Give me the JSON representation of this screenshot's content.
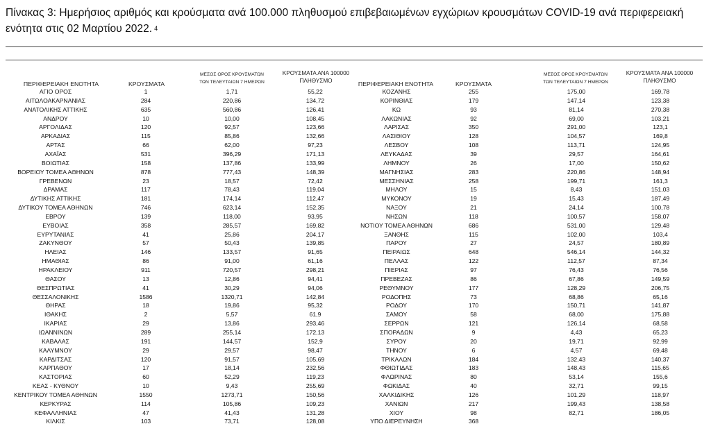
{
  "title": {
    "text": "Πίνακας 3: Ημερήσιος αριθμός και κρούσματα ανά 100.000 πληθυσμού επιβεβαιωμένων εγχώριων κρουσμάτων COVID-19 ανά περιφερειακή ενότητα στις 02 Μαρτίου 2022.",
    "footnote": "4"
  },
  "headers": {
    "region": "ΠΕΡΙΦΕΡΕΙΑΚΗ ΕΝΟΤΗΤΑ",
    "cases": "ΚΡΟΥΣΜΑΤΑ",
    "avg_line1": "ΜΕΣΟΣ ΟΡΟΣ ΚΡΟΥΣΜΑΤΩΝ",
    "avg_line2": "ΤΩΝ ΤΕΛΕΥΤΑΙΩΝ 7 ΗΜΕΡΩΝ",
    "per100k_line1": "ΚΡΟΥΣΜΑΤΑ ΑΝΑ 100000",
    "per100k_line2": "ΠΛΗΘΥΣΜΟ"
  },
  "left_rows": [
    [
      "ΑΓΙΟ ΟΡΟΣ",
      "1",
      "1,71",
      "55,22"
    ],
    [
      "ΑΙΤΩΛΟΑΚΑΡΝΑΝΙΑΣ",
      "284",
      "220,86",
      "134,72"
    ],
    [
      "ΑΝΑΤΟΛΙΚΗΣ ΑΤΤΙΚΗΣ",
      "635",
      "560,86",
      "126,41"
    ],
    [
      "ΑΝΔΡΟΥ",
      "10",
      "10,00",
      "108,45"
    ],
    [
      "ΑΡΓΟΛΙΔΑΣ",
      "120",
      "92,57",
      "123,66"
    ],
    [
      "ΑΡΚΑΔΙΑΣ",
      "115",
      "85,86",
      "132,66"
    ],
    [
      "ΑΡΤΑΣ",
      "66",
      "62,00",
      "97,23"
    ],
    [
      "ΑΧΑΪΑΣ",
      "531",
      "396,29",
      "171,13"
    ],
    [
      "ΒΟΙΩΤΙΑΣ",
      "158",
      "137,86",
      "133,99"
    ],
    [
      "ΒΟΡΕΙΟΥ ΤΟΜΕΑ ΑΘΗΝΩΝ",
      "878",
      "777,43",
      "148,39"
    ],
    [
      "ΓΡΕΒΕΝΩΝ",
      "23",
      "18,57",
      "72,42"
    ],
    [
      "ΔΡΑΜΑΣ",
      "117",
      "78,43",
      "119,04"
    ],
    [
      "ΔΥΤΙΚΗΣ ΑΤΤΙΚΗΣ",
      "181",
      "174,14",
      "112,47"
    ],
    [
      "ΔΥΤΙΚΟΥ ΤΟΜΕΑ ΑΘΗΝΩΝ",
      "746",
      "623,14",
      "152,35"
    ],
    [
      "ΕΒΡΟΥ",
      "139",
      "118,00",
      "93,95"
    ],
    [
      "ΕΥΒΟΙΑΣ",
      "358",
      "285,57",
      "169,82"
    ],
    [
      "ΕΥΡΥΤΑΝΙΑΣ",
      "41",
      "25,86",
      "204,17"
    ],
    [
      "ΖΑΚΥΝΘΟΥ",
      "57",
      "50,43",
      "139,85"
    ],
    [
      "ΗΛΕΙΑΣ",
      "146",
      "133,57",
      "91,65"
    ],
    [
      "ΗΜΑΘΙΑΣ",
      "86",
      "91,00",
      "61,16"
    ],
    [
      "ΗΡΑΚΛΕΙΟΥ",
      "911",
      "720,57",
      "298,21"
    ],
    [
      "ΘΑΣΟΥ",
      "13",
      "12,86",
      "94,41"
    ],
    [
      "ΘΕΣΠΡΩΤΙΑΣ",
      "41",
      "30,29",
      "94,06"
    ],
    [
      "ΘΕΣΣΑΛΟΝΙΚΗΣ",
      "1586",
      "1320,71",
      "142,84"
    ],
    [
      "ΘΗΡΑΣ",
      "18",
      "19,86",
      "95,32"
    ],
    [
      "ΙΘΑΚΗΣ",
      "2",
      "5,57",
      "61,9"
    ],
    [
      "ΙΚΑΡΙΑΣ",
      "29",
      "13,86",
      "293,46"
    ],
    [
      "ΙΩΑΝΝΙΝΩΝ",
      "289",
      "255,14",
      "172,13"
    ],
    [
      "ΚΑΒΑΛΑΣ",
      "191",
      "144,57",
      "152,9"
    ],
    [
      "ΚΑΛΥΜΝΟΥ",
      "29",
      "29,57",
      "98,47"
    ],
    [
      "ΚΑΡΔΙΤΣΑΣ",
      "120",
      "91,57",
      "105,69"
    ],
    [
      "ΚΑΡΠΑΘΟΥ",
      "17",
      "18,14",
      "232,56"
    ],
    [
      "ΚΑΣΤΟΡΙΑΣ",
      "60",
      "52,29",
      "119,23"
    ],
    [
      "ΚΕΑΣ - ΚΥΘΝΟΥ",
      "10",
      "9,43",
      "255,69"
    ],
    [
      "ΚΕΝΤΡΙΚΟΥ ΤΟΜΕΑ ΑΘΗΝΩΝ",
      "1550",
      "1273,71",
      "150,56"
    ],
    [
      "ΚΕΡΚΥΡΑΣ",
      "114",
      "105,86",
      "109,23"
    ],
    [
      "ΚΕΦΑΛΛΗΝΙΑΣ",
      "47",
      "41,43",
      "131,28"
    ],
    [
      "ΚΙΛΚΙΣ",
      "103",
      "73,71",
      "128,08"
    ]
  ],
  "right_rows": [
    [
      "ΚΟΖΑΝΗΣ",
      "255",
      "175,00",
      "169,78"
    ],
    [
      "ΚΟΡΙΝΘΙΑΣ",
      "179",
      "147,14",
      "123,38"
    ],
    [
      "ΚΩ",
      "93",
      "81,14",
      "270,38"
    ],
    [
      "ΛΑΚΩΝΙΑΣ",
      "92",
      "69,00",
      "103,21"
    ],
    [
      "ΛΑΡΙΣΑΣ",
      "350",
      "291,00",
      "123,1"
    ],
    [
      "ΛΑΣΙΘΙΟΥ",
      "128",
      "104,57",
      "169,8"
    ],
    [
      "ΛΕΣΒΟΥ",
      "108",
      "113,71",
      "124,95"
    ],
    [
      "ΛΕΥΚΑΔΑΣ",
      "39",
      "29,57",
      "164,61"
    ],
    [
      "ΛΗΜΝΟΥ",
      "26",
      "17,00",
      "150,62"
    ],
    [
      "ΜΑΓΝΗΣΙΑΣ",
      "283",
      "220,86",
      "148,94"
    ],
    [
      "ΜΕΣΣΗΝΙΑΣ",
      "258",
      "199,71",
      "161,3"
    ],
    [
      "ΜΗΛΟΥ",
      "15",
      "8,43",
      "151,03"
    ],
    [
      "ΜΥΚΟΝΟΥ",
      "19",
      "15,43",
      "187,49"
    ],
    [
      "ΝΑΞΟΥ",
      "21",
      "24,14",
      "100,78"
    ],
    [
      "ΝΗΣΩΝ",
      "118",
      "100,57",
      "158,07"
    ],
    [
      "ΝΟΤΙΟΥ ΤΟΜΕΑ ΑΘΗΝΩΝ",
      "686",
      "531,00",
      "129,48"
    ],
    [
      "ΞΑΝΘΗΣ",
      "115",
      "102,00",
      "103,4"
    ],
    [
      "ΠΑΡΟΥ",
      "27",
      "24,57",
      "180,89"
    ],
    [
      "ΠΕΙΡΑΙΩΣ",
      "648",
      "546,14",
      "144,32"
    ],
    [
      "ΠΕΛΛΑΣ",
      "122",
      "112,57",
      "87,34"
    ],
    [
      "ΠΙΕΡΙΑΣ",
      "97",
      "76,43",
      "76,56"
    ],
    [
      "ΠΡΕΒΕΖΑΣ",
      "86",
      "67,86",
      "149,59"
    ],
    [
      "ΡΕΘΥΜΝΟΥ",
      "177",
      "128,29",
      "206,75"
    ],
    [
      "ΡΟΔΟΠΗΣ",
      "73",
      "68,86",
      "65,16"
    ],
    [
      "ΡΟΔΟΥ",
      "170",
      "150,71",
      "141,87"
    ],
    [
      "ΣΑΜΟΥ",
      "58",
      "68,00",
      "175,88"
    ],
    [
      "ΣΕΡΡΩΝ",
      "121",
      "126,14",
      "68,58"
    ],
    [
      "ΣΠΟΡΑΔΩΝ",
      "9",
      "4,43",
      "65,23"
    ],
    [
      "ΣΥΡΟΥ",
      "20",
      "19,71",
      "92,99"
    ],
    [
      "ΤΗΝΟΥ",
      "6",
      "4,57",
      "69,48"
    ],
    [
      "ΤΡΙΚΑΛΩΝ",
      "184",
      "132,43",
      "140,37"
    ],
    [
      "ΦΘΙΩΤΙΔΑΣ",
      "183",
      "148,43",
      "115,65"
    ],
    [
      "ΦΛΩΡΙΝΑΣ",
      "80",
      "53,14",
      "155,6"
    ],
    [
      "ΦΩΚΙΔΑΣ",
      "40",
      "32,71",
      "99,15"
    ],
    [
      "ΧΑΛΚΙΔΙΚΗΣ",
      "126",
      "101,29",
      "118,97"
    ],
    [
      "ΧΑΝΙΩΝ",
      "217",
      "199,43",
      "138,58"
    ],
    [
      "ΧΙΟΥ",
      "98",
      "82,71",
      "186,05"
    ],
    [
      "ΥΠΟ ΔΙΕΡΕΥΝΗΣΗ",
      "368",
      "",
      ""
    ]
  ]
}
